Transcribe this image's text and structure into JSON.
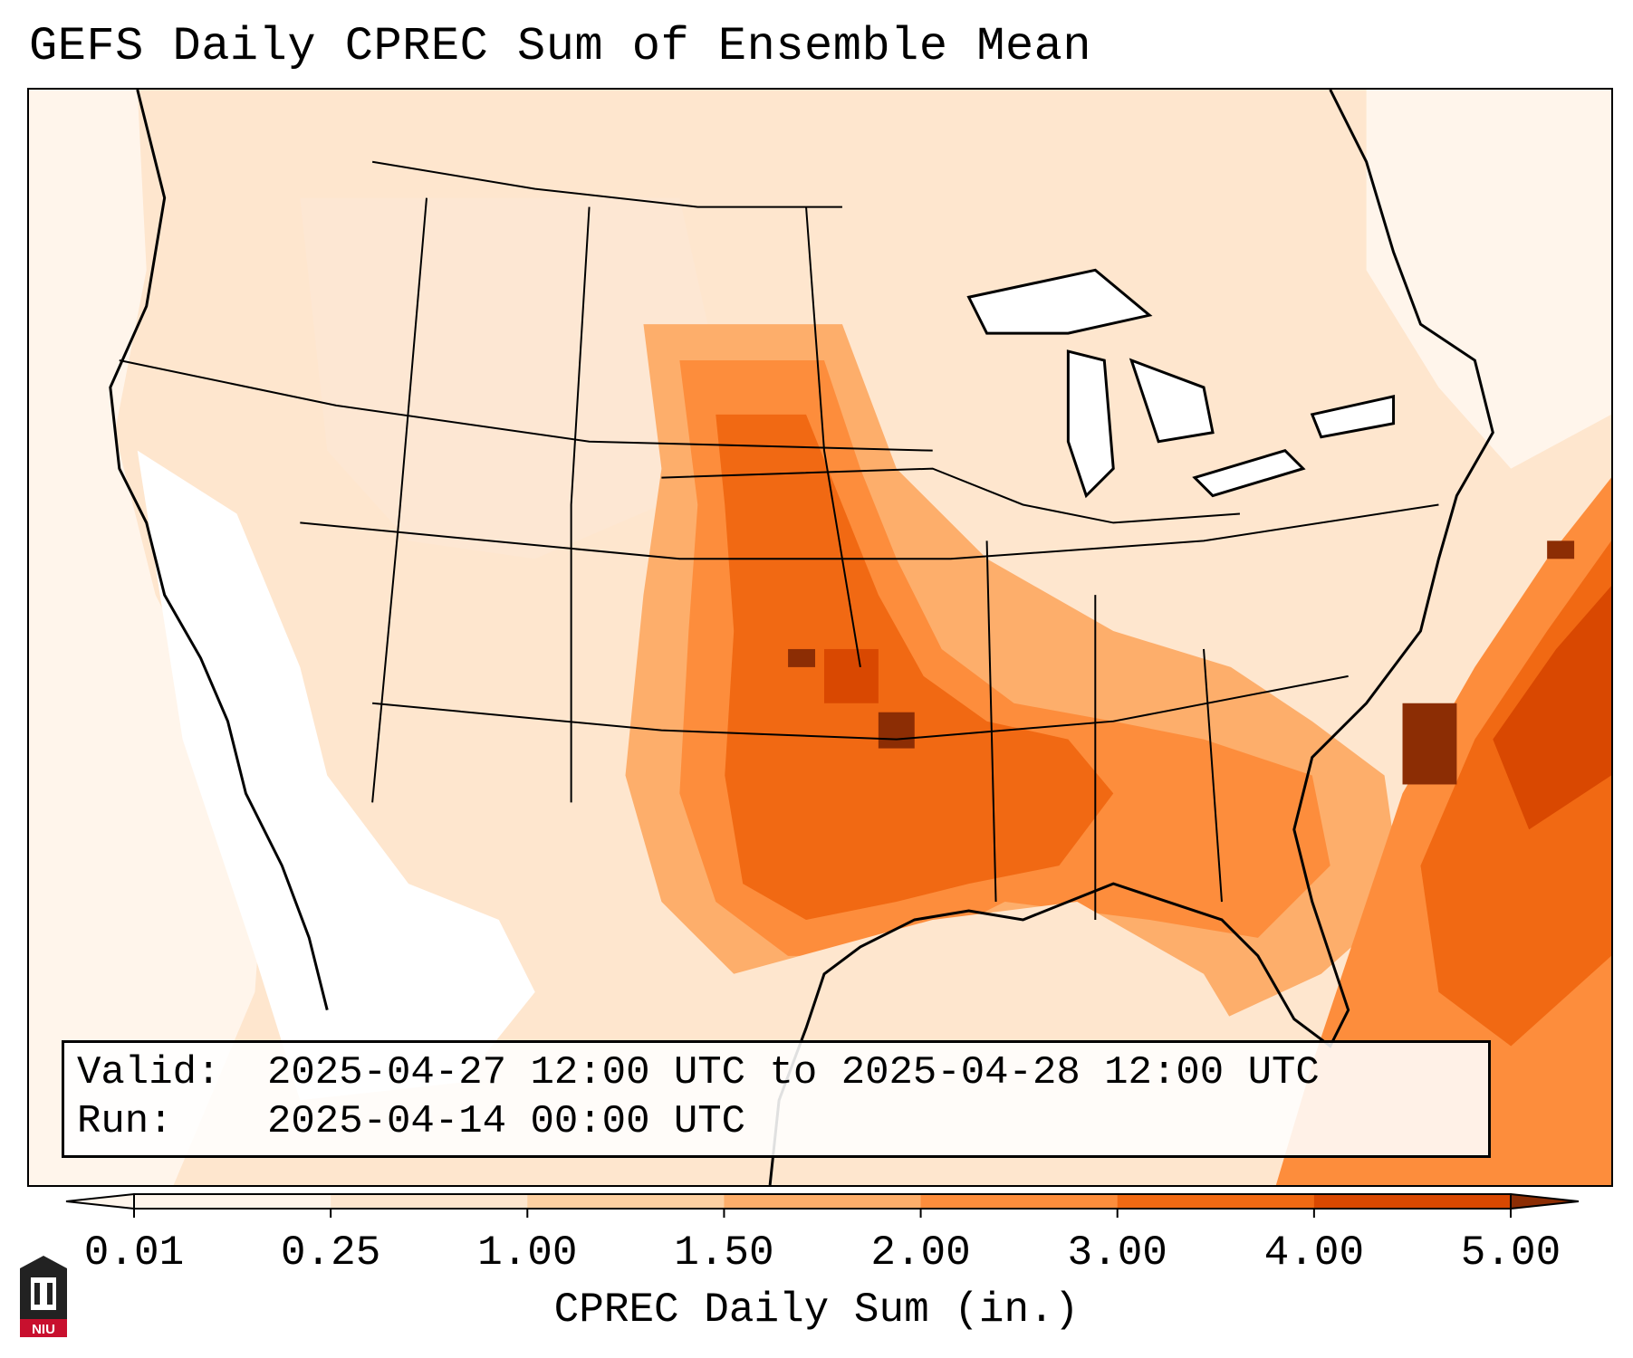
{
  "title": "GEFS Daily CPREC Sum of Ensemble Mean",
  "info": {
    "valid_label": "Valid:",
    "valid_value": "2025-04-27 12:00 UTC to 2025-04-28 12:00 UTC",
    "run_label": "Run:",
    "run_value": "2025-04-14 00:00 UTC"
  },
  "colorbar": {
    "label": "CPREC Daily Sum (in.)",
    "ticks": [
      "0.01",
      "0.25",
      "1.00",
      "1.50",
      "2.00",
      "3.00",
      "4.00",
      "5.00"
    ],
    "colors": [
      "#fff5eb",
      "#fee6ce",
      "#fdd0a2",
      "#fdae6b",
      "#fd8d3c",
      "#f16913",
      "#d94801",
      "#8c2d04"
    ]
  },
  "logo": {
    "text": "NIU"
  },
  "colors": {
    "light": "#fff5eb",
    "pale": "#fee6ce",
    "peach": "#fdd0a2",
    "tan": "#fdae6b",
    "orange": "#fd8d3c",
    "deep_orange": "#f16913",
    "dark_orange": "#d94801",
    "brown": "#8c2d04"
  }
}
